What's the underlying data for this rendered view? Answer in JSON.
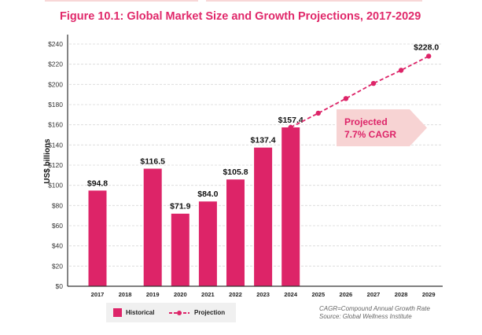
{
  "chart_data": {
    "type": "bar",
    "title": "Figure 10.1: Global Market Size and Growth Projections, 2017-2029",
    "ylabel": "US$ billions",
    "xlabel": "",
    "ylim": [
      0,
      240
    ],
    "yticks": [
      "$0",
      "$20",
      "$40",
      "$60",
      "$80",
      "$100",
      "$120",
      "$140",
      "$160",
      "$180",
      "$200",
      "$220",
      "$240"
    ],
    "categories": [
      "2017",
      "2018",
      "2019",
      "2020",
      "2021",
      "2022",
      "2023",
      "2024",
      "2025",
      "2026",
      "2027",
      "2028",
      "2029"
    ],
    "series": [
      {
        "name": "Historical",
        "type": "bar",
        "values": [
          94.8,
          null,
          116.5,
          71.9,
          84.0,
          105.8,
          137.4,
          157.4,
          null,
          null,
          null,
          null,
          null
        ],
        "labels": [
          "$94.8",
          "",
          "$116.5",
          "$71.9",
          "$84.0",
          "$105.8",
          "$137.4",
          "$157.4",
          "",
          "",
          "",
          "",
          ""
        ]
      },
      {
        "name": "Projection",
        "type": "line",
        "values": [
          null,
          null,
          null,
          null,
          null,
          null,
          null,
          157.4,
          171.5,
          186.0,
          201.0,
          214.0,
          228.0
        ],
        "end_label": "$228.0"
      }
    ],
    "grid": true,
    "legend_position": "bottom-left",
    "annotation": {
      "line1": "Projected",
      "line2": "7.7% CAGR"
    },
    "notes": [
      "CAGR=Compound Annual Growth Rate",
      "Source: Global Wellness Institute"
    ]
  },
  "colors": {
    "accent": "#dd2468",
    "callout": "#f7d3d3",
    "grid": "#d9d9d9"
  }
}
